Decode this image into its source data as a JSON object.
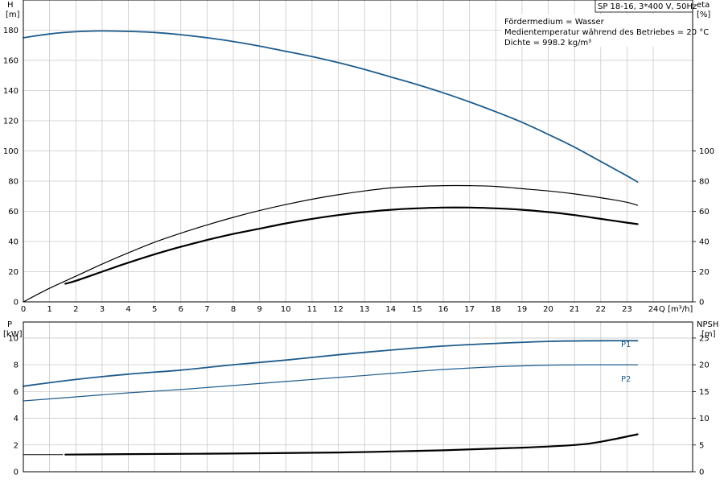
{
  "header": {
    "title": "SP 18-16, 3*400 V, 50Hz",
    "medium_lines": [
      "Fördermedium = Wasser",
      "Medientemperatur während des Betriebes = 20 °C",
      "Dichte = 998.2 kg/m³"
    ]
  },
  "colors": {
    "blue": "#1f5c8c",
    "black": "#000000",
    "grid": "#c8c8c8"
  },
  "chart_data": [
    {
      "type": "line",
      "panel": "top",
      "left_axis": {
        "label": "H",
        "unit": "[m]",
        "ticks": [
          0,
          20,
          40,
          60,
          80,
          100,
          120,
          140,
          160,
          180
        ],
        "range": [
          0,
          200
        ]
      },
      "right_axis": {
        "label": "eta",
        "unit": "[%]",
        "ticks": [
          0,
          20,
          40,
          60,
          80,
          100
        ],
        "range": [
          0,
          200
        ]
      },
      "x_axis": {
        "label": "Q [m³/h]",
        "ticks": [
          0,
          1,
          2,
          3,
          4,
          5,
          6,
          7,
          8,
          9,
          10,
          11,
          12,
          13,
          14,
          15,
          16,
          17,
          18,
          19,
          20,
          21,
          22,
          23,
          24
        ],
        "range": [
          0,
          25.5
        ]
      },
      "grid": true,
      "series": [
        {
          "id": "H",
          "axis": "left",
          "color": "blue",
          "x": [
            0,
            1,
            2,
            3,
            4,
            5,
            6,
            7,
            8,
            9,
            10,
            11,
            12,
            13,
            14,
            15,
            16,
            17,
            18,
            19,
            20,
            21,
            22,
            23,
            23.4
          ],
          "y": [
            175,
            177.5,
            179,
            179.5,
            179.2,
            178.5,
            177,
            175,
            172.5,
            169.5,
            166,
            162.5,
            158.5,
            154,
            149,
            144,
            138.5,
            132.5,
            126,
            119,
            111,
            102.5,
            93,
            83.5,
            79.5
          ]
        },
        {
          "id": "eta_thin",
          "axis": "right",
          "color": "black",
          "x": [
            0,
            1,
            2,
            3,
            4,
            5,
            6,
            7,
            8,
            9,
            10,
            11,
            12,
            13,
            14,
            15,
            16,
            17,
            18,
            19,
            20,
            21,
            22,
            23,
            23.4
          ],
          "y": [
            0,
            9,
            17,
            25,
            32.5,
            39.5,
            45.5,
            51,
            56,
            60.5,
            64.5,
            68,
            71,
            73.5,
            75.5,
            76.5,
            77,
            77,
            76.5,
            75,
            73.5,
            71.5,
            69,
            66,
            64
          ]
        },
        {
          "id": "eta_thick",
          "axis": "right",
          "color": "black",
          "width": 2.2,
          "x": [
            1.6,
            2,
            3,
            4,
            5,
            6,
            7,
            8,
            9,
            10,
            11,
            12,
            13,
            14,
            15,
            16,
            17,
            18,
            19,
            20,
            21,
            22,
            23,
            23.4
          ],
          "y": [
            12,
            14,
            20,
            26,
            31.5,
            36.5,
            41,
            45,
            48.5,
            52,
            55,
            57.5,
            59.5,
            61,
            62,
            62.5,
            62.5,
            62,
            61,
            59.5,
            57.5,
            55,
            52.5,
            51.5
          ]
        }
      ]
    },
    {
      "type": "line",
      "panel": "bottom",
      "left_axis": {
        "label": "P",
        "unit": "[kW]",
        "ticks": [
          0,
          2,
          4,
          6,
          8,
          10
        ],
        "range": [
          0,
          11.2
        ]
      },
      "right_axis": {
        "label": "NPSH",
        "unit": "[m]",
        "ticks": [
          0,
          5,
          10,
          15,
          20,
          25
        ],
        "range": [
          0,
          28
        ]
      },
      "x_axis": {
        "ticks": [
          0,
          1,
          2,
          3,
          4,
          5,
          6,
          7,
          8,
          9,
          10,
          11,
          12,
          13,
          14,
          15,
          16,
          17,
          18,
          19,
          20,
          21,
          22,
          23,
          24
        ],
        "range": [
          0,
          25.5
        ]
      },
      "grid": true,
      "series": [
        {
          "id": "P1",
          "name": "P1",
          "axis": "left",
          "color": "blue",
          "width": 1.8,
          "x": [
            0,
            2,
            4,
            6,
            8,
            10,
            12,
            14,
            16,
            18,
            20,
            22,
            23.4
          ],
          "y": [
            6.4,
            6.9,
            7.3,
            7.6,
            8.0,
            8.35,
            8.75,
            9.1,
            9.4,
            9.6,
            9.75,
            9.8,
            9.8
          ]
        },
        {
          "id": "P2",
          "name": "P2",
          "axis": "left",
          "color": "blue",
          "width": 1.2,
          "x": [
            0,
            2,
            4,
            6,
            8,
            10,
            12,
            14,
            16,
            18,
            20,
            22,
            23.4
          ],
          "y": [
            5.3,
            5.6,
            5.9,
            6.15,
            6.45,
            6.75,
            7.05,
            7.35,
            7.65,
            7.85,
            7.97,
            8.0,
            8.0
          ]
        },
        {
          "id": "NPSH_low",
          "axis": "right",
          "color": "black",
          "width": 1,
          "x": [
            0,
            1.5
          ],
          "y": [
            3.2,
            3.2
          ]
        },
        {
          "id": "NPSH",
          "axis": "right",
          "color": "black",
          "width": 2.2,
          "x": [
            1.6,
            4,
            8,
            12,
            16,
            19,
            21,
            22,
            23.4
          ],
          "y": [
            3.2,
            3.3,
            3.4,
            3.6,
            4.0,
            4.5,
            5.0,
            5.6,
            7.0
          ]
        }
      ]
    }
  ]
}
